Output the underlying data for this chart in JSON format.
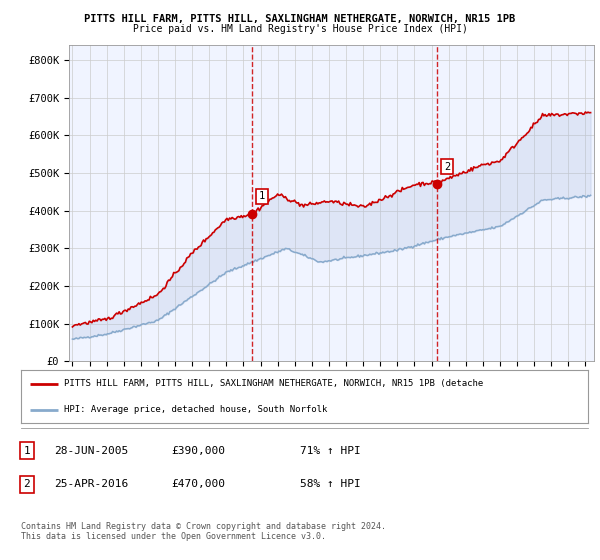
{
  "title1": "PITTS HILL FARM, PITTS HILL, SAXLINGHAM NETHERGATE, NORWICH, NR15 1PB",
  "title2": "Price paid vs. HM Land Registry's House Price Index (HPI)",
  "ylabel_ticks": [
    "£0",
    "£100K",
    "£200K",
    "£300K",
    "£400K",
    "£500K",
    "£600K",
    "£700K",
    "£800K"
  ],
  "ytick_values": [
    0,
    100000,
    200000,
    300000,
    400000,
    500000,
    600000,
    700000,
    800000
  ],
  "ylim": [
    0,
    840000
  ],
  "xlim_start": 1994.8,
  "xlim_end": 2025.5,
  "sale1_x": 2005.49,
  "sale1_y": 390000,
  "sale2_x": 2016.32,
  "sale2_y": 470000,
  "sale1_label": "1",
  "sale2_label": "2",
  "vline_color": "#cc0000",
  "hpi_color": "#88aacc",
  "price_color": "#cc0000",
  "grid_color": "#cccccc",
  "fill_color": "#ddeeff",
  "legend_line1": "PITTS HILL FARM, PITTS HILL, SAXLINGHAM NETHERGATE, NORWICH, NR15 1PB (detache",
  "legend_line2": "HPI: Average price, detached house, South Norfolk",
  "note1_box": "1",
  "note1_date": "28-JUN-2005",
  "note1_price": "£390,000",
  "note1_hpi": "71% ↑ HPI",
  "note2_box": "2",
  "note2_date": "25-APR-2016",
  "note2_price": "£470,000",
  "note2_hpi": "58% ↑ HPI",
  "footer": "Contains HM Land Registry data © Crown copyright and database right 2024.\nThis data is licensed under the Open Government Licence v3.0.",
  "bg_chart": "#f0f4ff",
  "bg_figure": "#ffffff"
}
